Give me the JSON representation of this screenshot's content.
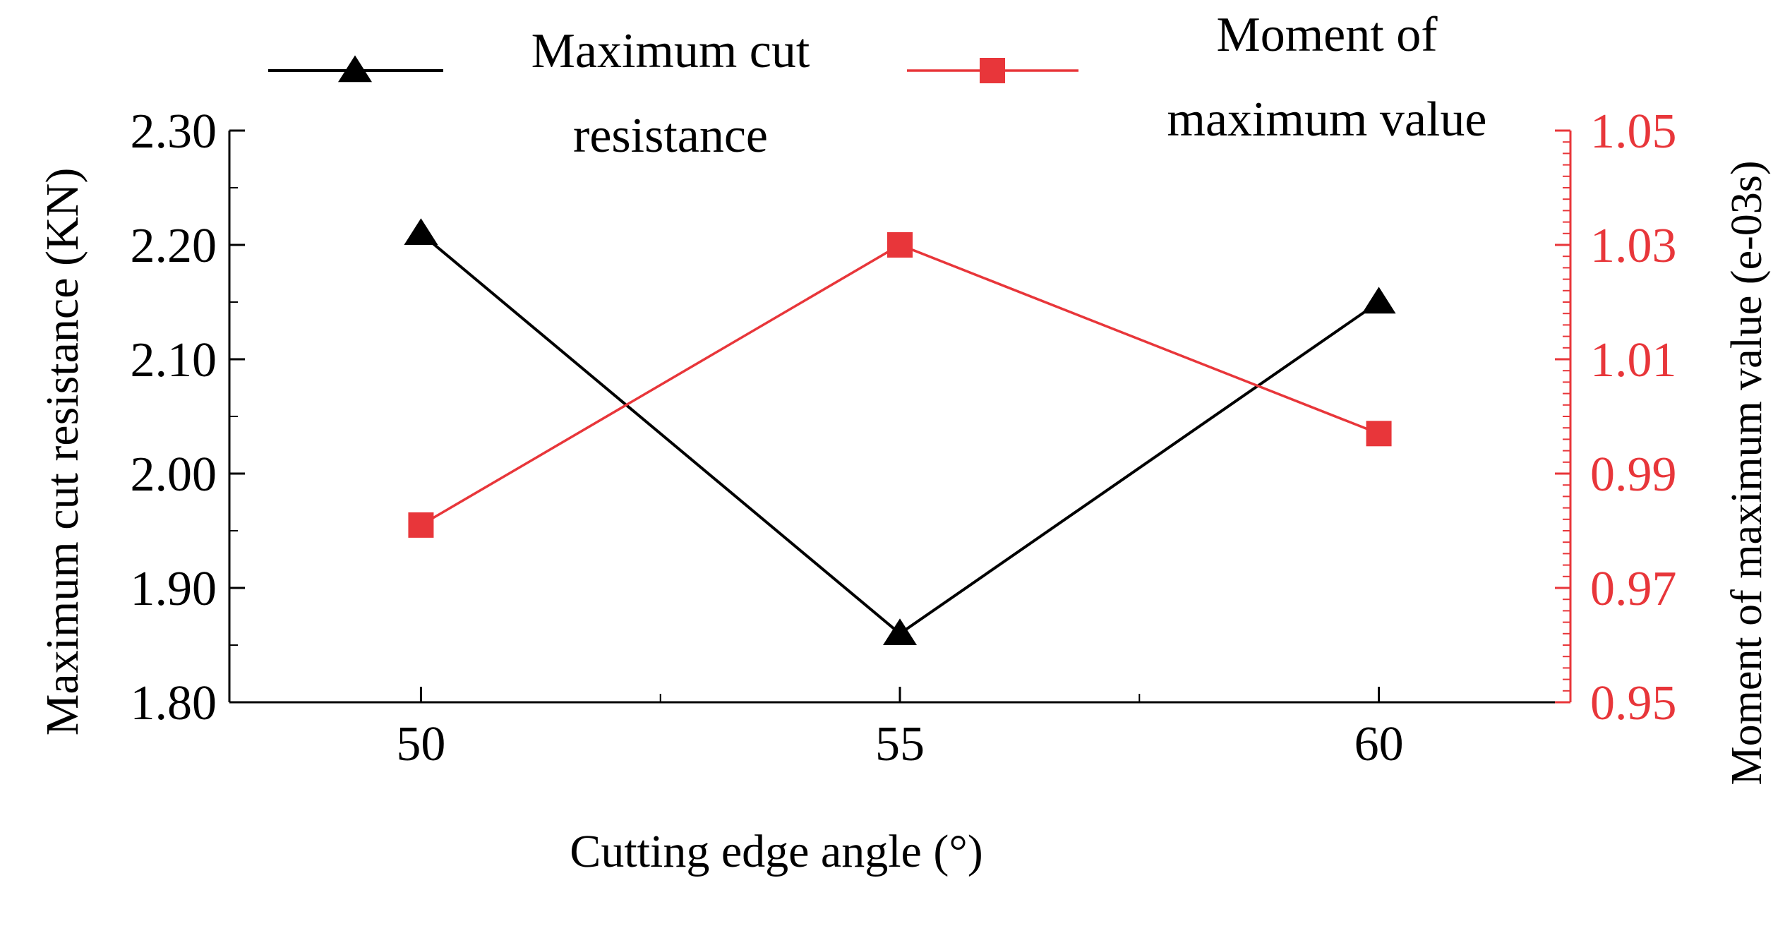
{
  "chart_data": {
    "type": "line",
    "x": [
      50,
      55,
      60
    ],
    "xlabel": "Cutting edge angle (°)",
    "xlim": [
      48,
      62
    ],
    "xticks": [
      "50",
      "55",
      "60"
    ],
    "y_left": {
      "label": "Maximum cut resistance (KN)",
      "lim": [
        1.8,
        2.3
      ],
      "ticks": [
        "1.80",
        "1.90",
        "2.00",
        "2.10",
        "2.20",
        "2.30"
      ]
    },
    "y_right": {
      "label": "Moment of maximum value (e-03s)",
      "lim": [
        0.95,
        1.05
      ],
      "ticks": [
        "0.95",
        "0.97",
        "0.99",
        "1.01",
        "1.03",
        "1.05"
      ]
    },
    "series": [
      {
        "name": "Maximum cut resistance",
        "legend_lines": [
          "Maximum cut",
          "resistance"
        ],
        "axis": "left",
        "values": [
          2.21,
          1.86,
          2.15
        ],
        "color": "#000000",
        "marker": "triangle"
      },
      {
        "name": "Moment of maximum value",
        "legend_lines": [
          "Moment of",
          "maximum value"
        ],
        "axis": "right",
        "values": [
          0.981,
          1.03,
          0.997
        ],
        "color": "#e8363a",
        "marker": "square"
      }
    ],
    "legend_position": "top",
    "grid": false
  }
}
